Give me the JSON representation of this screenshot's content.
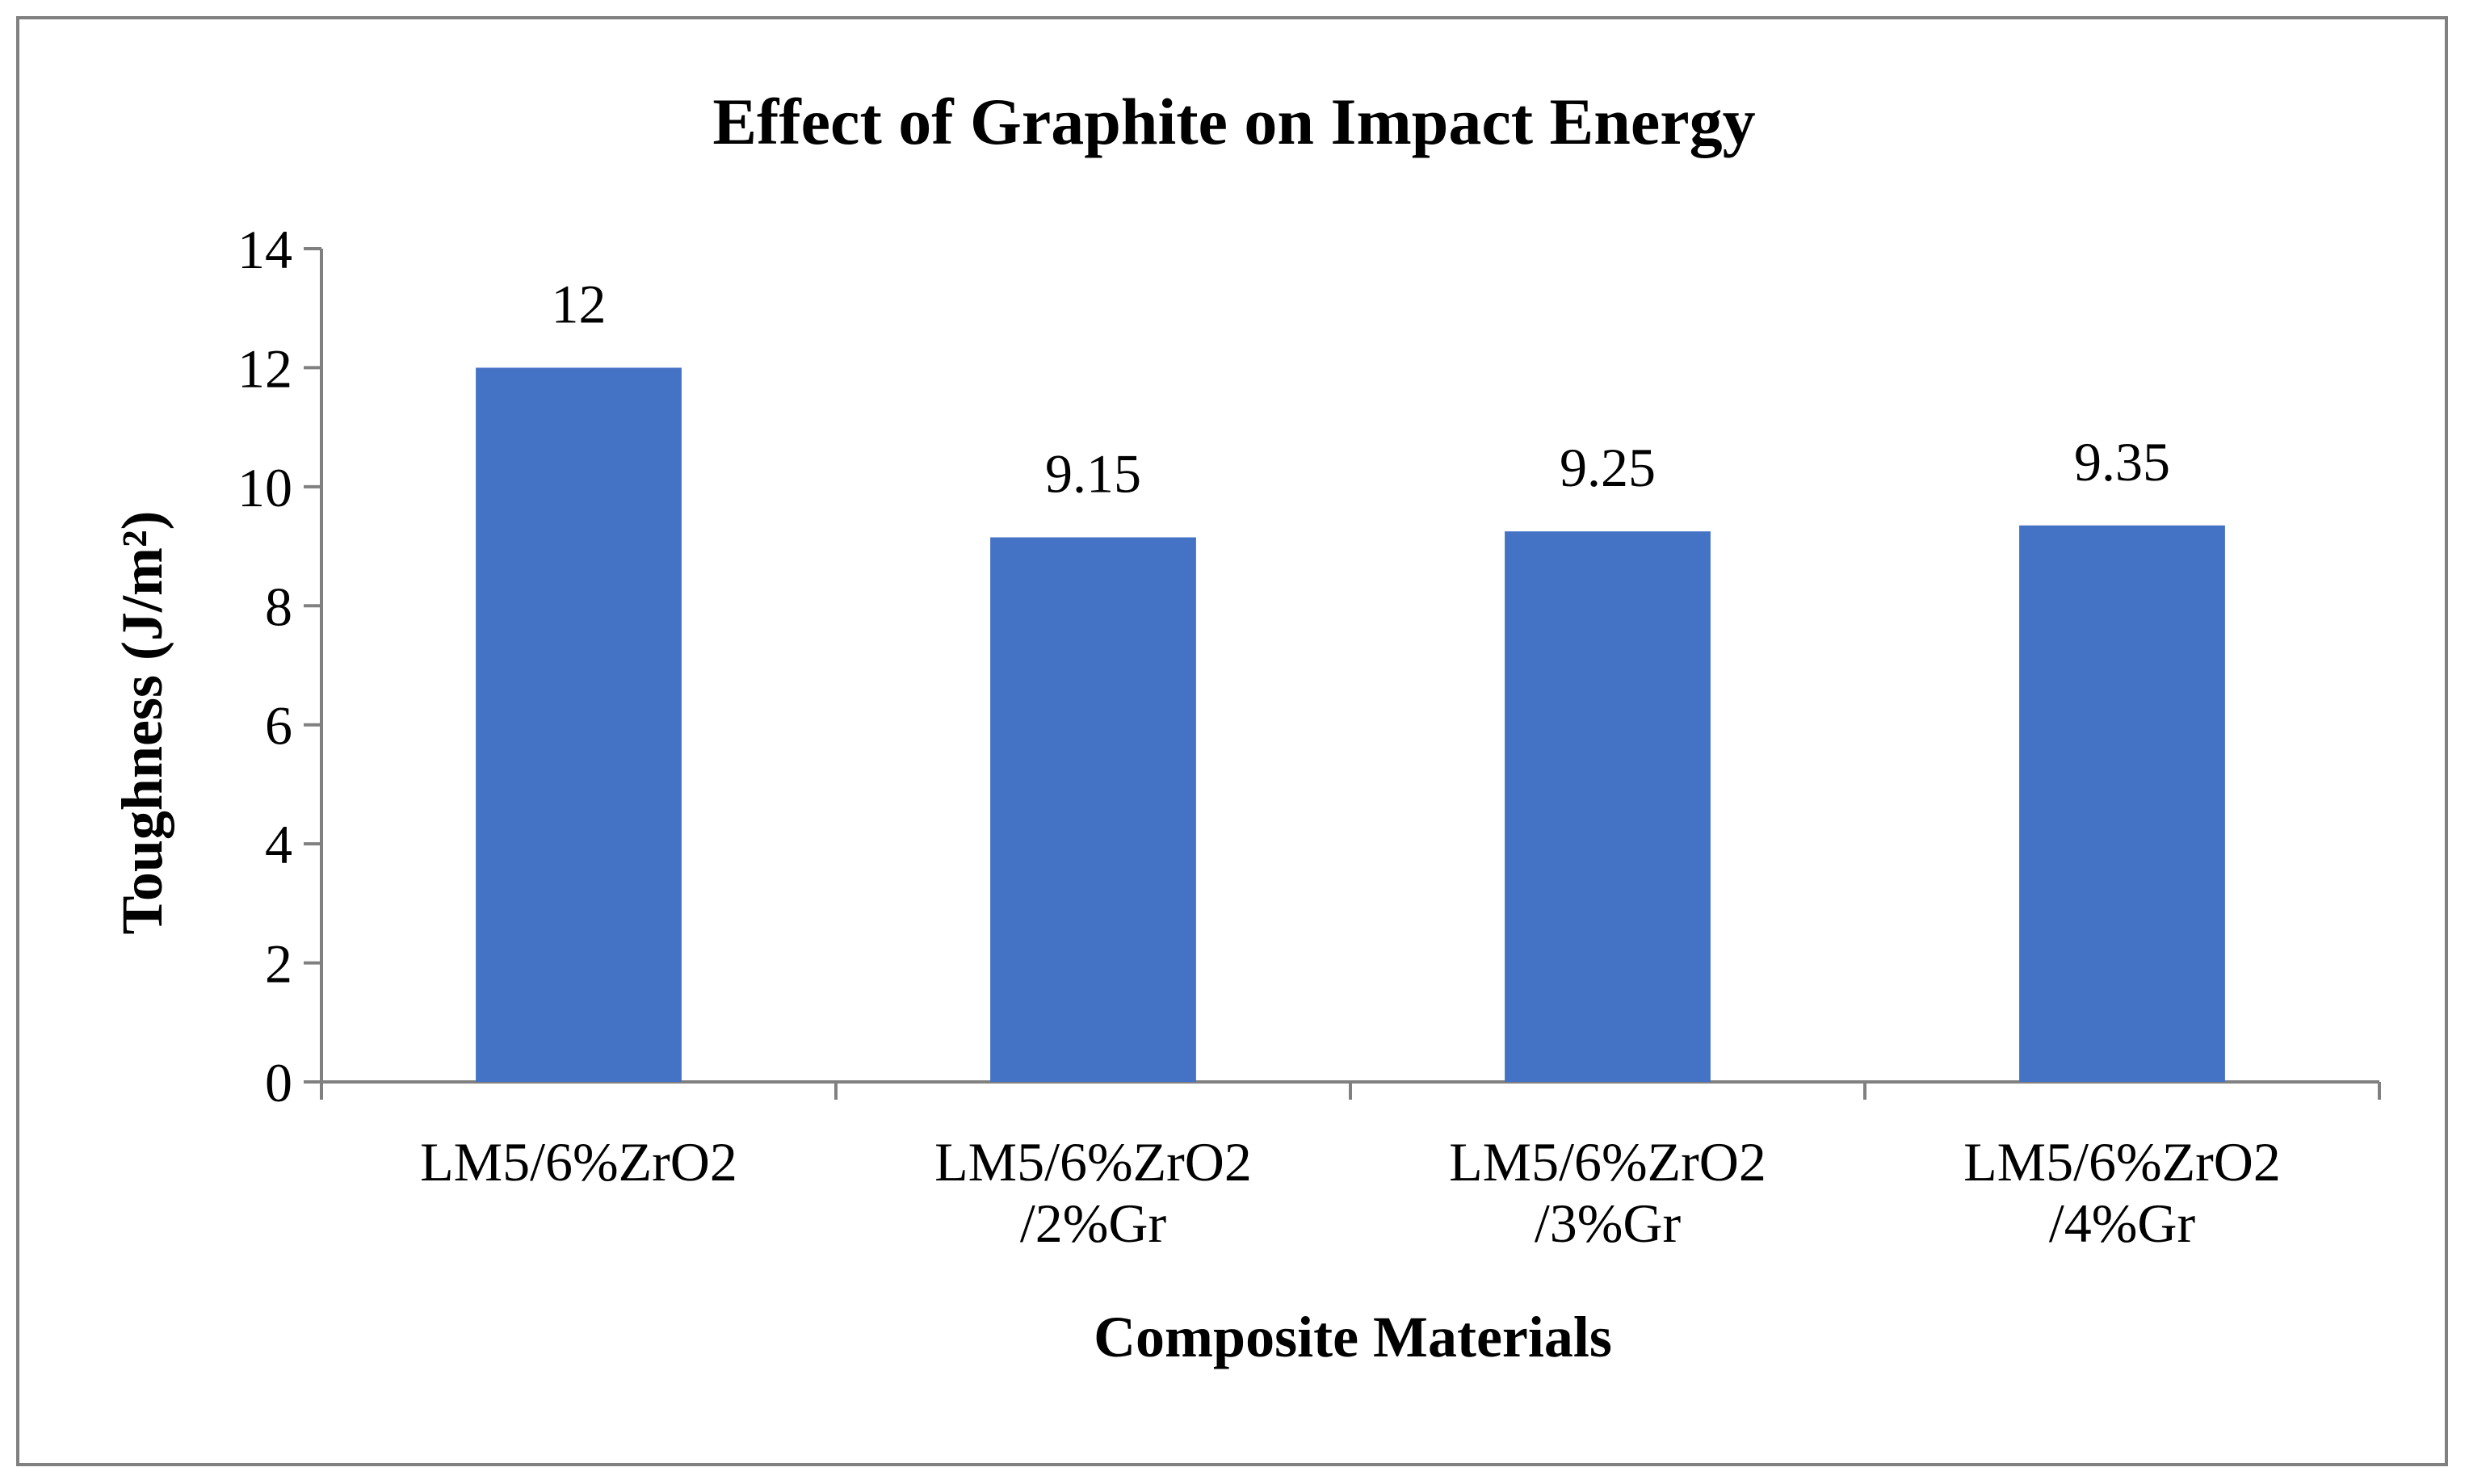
{
  "chart_data": {
    "type": "bar",
    "title": "Effect of Graphite on Impact Energy",
    "xlabel": "Composite Materials",
    "ylabel": "Toughness (J/m²)",
    "categories": [
      [
        "LM5/6%ZrO2"
      ],
      [
        "LM5/6%ZrO2",
        "/2%Gr"
      ],
      [
        "LM5/6%ZrO2",
        "/3%Gr"
      ],
      [
        "LM5/6%ZrO2",
        "/4%Gr"
      ]
    ],
    "values": [
      12,
      9.15,
      9.25,
      9.35
    ],
    "value_labels": [
      "12",
      "9.15",
      "9.25",
      "9.35"
    ],
    "ylim": [
      0,
      14
    ],
    "yticks": [
      "0",
      "2",
      "4",
      "6",
      "8",
      "10",
      "12",
      "14"
    ],
    "grid": false,
    "legend": "none",
    "bar_color": "#4472C4",
    "axis_color": "#808080"
  }
}
